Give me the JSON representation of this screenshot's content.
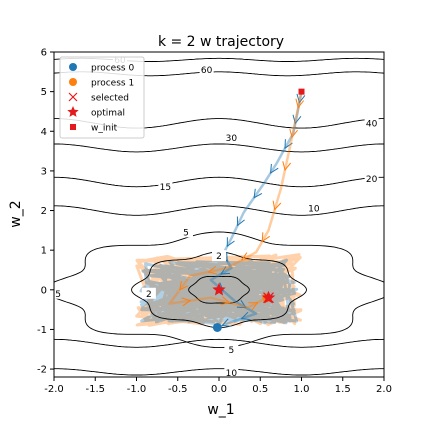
{
  "chart_data": {
    "type": "scatter",
    "title": "k = 2 w trajectory",
    "xlabel": "w_1",
    "ylabel": "w_2",
    "xlim": [
      -2.0,
      2.0
    ],
    "ylim": [
      -2.2,
      6.0
    ],
    "xticks": [
      "-2.0",
      "-1.5",
      "-1.0",
      "-0.5",
      "0.0",
      "0.5",
      "1.0",
      "1.5",
      "2.0"
    ],
    "yticks": [
      "-2",
      "-1",
      "0",
      "1",
      "2",
      "3",
      "4",
      "5",
      "6"
    ],
    "grid": false,
    "legend": {
      "placement": "top-left",
      "entries": [
        {
          "label": "process 0",
          "marker": "circle",
          "color": "#1f77b4"
        },
        {
          "label": "process 1",
          "marker": "circle",
          "color": "#ff7f0e"
        },
        {
          "label": "selected",
          "marker": "x",
          "color": "#e41a1c"
        },
        {
          "label": "optimal",
          "marker": "star",
          "color": "#e41a1c"
        },
        {
          "label": "w_init",
          "marker": "square",
          "color": "#e41a1c"
        }
      ]
    },
    "contour_labels": [
      {
        "text": "60",
        "x": -1.2,
        "y": 5.8
      },
      {
        "text": "60",
        "x": -0.15,
        "y": 5.55
      },
      {
        "text": "40",
        "x": 1.85,
        "y": 4.2
      },
      {
        "text": "30",
        "x": 0.15,
        "y": 3.83
      },
      {
        "text": "20",
        "x": 1.85,
        "y": 2.8
      },
      {
        "text": "15",
        "x": -0.65,
        "y": 2.6
      },
      {
        "text": "10",
        "x": 1.15,
        "y": 2.05
      },
      {
        "text": "10",
        "x": 0.15,
        "y": -2.1
      },
      {
        "text": "5",
        "x": -0.4,
        "y": 1.45
      },
      {
        "text": "5",
        "x": 0.15,
        "y": -1.52
      },
      {
        "text": "2",
        "x": -0.85,
        "y": -0.1
      },
      {
        "text": "2",
        "x": 0.0,
        "y": 0.85
      },
      {
        "text": "5",
        "x": -1.95,
        "y": -0.1
      }
    ],
    "w_init": {
      "x": 1.0,
      "y": 5.0
    },
    "optimal": [
      {
        "x": 0.0,
        "y": 0.0
      },
      {
        "x": 0.6,
        "y": -0.2
      }
    ],
    "selected": [
      {
        "x": 0.6,
        "y": -0.2
      }
    ],
    "process_endpoints": [
      {
        "process": "process 0",
        "x": -0.02,
        "y": -0.95
      },
      {
        "process": "process 1",
        "x": 0.58,
        "y": -0.2
      }
    ],
    "series": [
      {
        "name": "process 0",
        "color": "#1f77b4",
        "path": [
          [
            1.0,
            5.0
          ],
          [
            0.95,
            4.45
          ],
          [
            0.9,
            3.95
          ],
          [
            0.7,
            3.2
          ],
          [
            0.55,
            2.7
          ],
          [
            0.3,
            1.95
          ],
          [
            0.15,
            1.3
          ],
          [
            0.05,
            0.9
          ],
          [
            0.15,
            0.55
          ],
          [
            -0.1,
            0.25
          ],
          [
            0.2,
            -0.3
          ],
          [
            0.45,
            -0.6
          ],
          [
            0.1,
            -0.85
          ],
          [
            -0.02,
            -0.95
          ]
        ]
      },
      {
        "name": "process 1",
        "color": "#ff7f0e",
        "path": [
          [
            1.0,
            5.0
          ],
          [
            0.92,
            4.2
          ],
          [
            0.85,
            3.5
          ],
          [
            0.75,
            2.55
          ],
          [
            0.6,
            1.5
          ],
          [
            0.45,
            0.95
          ],
          [
            0.1,
            0.55
          ],
          [
            -0.35,
            0.35
          ],
          [
            -0.6,
            -0.35
          ],
          [
            -0.1,
            -0.2
          ],
          [
            0.35,
            -0.45
          ],
          [
            0.58,
            -0.2
          ]
        ]
      }
    ]
  }
}
